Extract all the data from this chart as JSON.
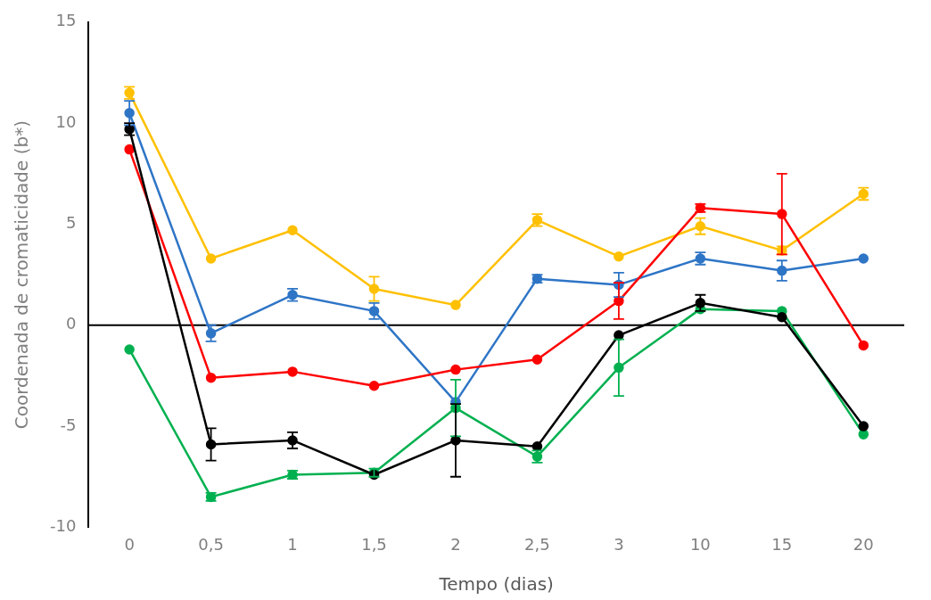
{
  "chart_data": {
    "type": "line",
    "xlabel": "Tempo (dias)",
    "ylabel": "Coordenada de cromaticidade (b*)",
    "categories": [
      "0",
      "0,5",
      "1",
      "1,5",
      "2",
      "2,5",
      "3",
      "10",
      "15",
      "20"
    ],
    "ylim": [
      -10,
      15
    ],
    "yticks": [
      -10,
      -5,
      0,
      5,
      10,
      15
    ],
    "grid": false,
    "ref_lines": [
      {
        "axis": "y",
        "value": 0,
        "color": "#000000",
        "line_style": "solid"
      }
    ],
    "legend": false,
    "marker": "circle",
    "line_style": "solid",
    "series": [
      {
        "color": "#ffc000",
        "values": [
          11.5,
          3.3,
          4.7,
          1.8,
          1.0,
          5.2,
          3.4,
          4.9,
          3.7,
          6.5
        ],
        "errors": [
          0.3,
          null,
          null,
          0.6,
          null,
          0.3,
          null,
          0.4,
          0.2,
          0.3
        ]
      },
      {
        "color": "#2e75c6",
        "values": [
          10.5,
          -0.4,
          1.5,
          0.7,
          -3.8,
          2.3,
          2.0,
          3.3,
          2.7,
          3.3
        ],
        "errors": [
          0.6,
          0.4,
          0.3,
          0.4,
          null,
          0.2,
          0.6,
          0.3,
          0.5,
          null
        ]
      },
      {
        "color": "#ff0000",
        "values": [
          8.7,
          -2.6,
          -2.3,
          -3.0,
          -2.2,
          -1.7,
          1.2,
          5.8,
          5.5,
          -1.0
        ],
        "errors": [
          null,
          null,
          null,
          null,
          null,
          null,
          0.9,
          0.2,
          2.0,
          null
        ]
      },
      {
        "color": "#00b050",
        "values": [
          -1.2,
          -8.5,
          -7.4,
          -7.3,
          -4.1,
          -6.5,
          -2.1,
          0.8,
          0.7,
          -5.4
        ],
        "errors": [
          null,
          0.2,
          0.2,
          0.2,
          1.4,
          0.3,
          1.4,
          null,
          null,
          null
        ]
      },
      {
        "color": "#000000",
        "values": [
          9.7,
          -5.9,
          -5.7,
          -7.4,
          -5.7,
          -6.0,
          -0.5,
          1.1,
          0.4,
          -5.0
        ],
        "errors": [
          0.3,
          0.8,
          0.4,
          null,
          1.8,
          null,
          null,
          0.4,
          null,
          null
        ]
      }
    ]
  }
}
